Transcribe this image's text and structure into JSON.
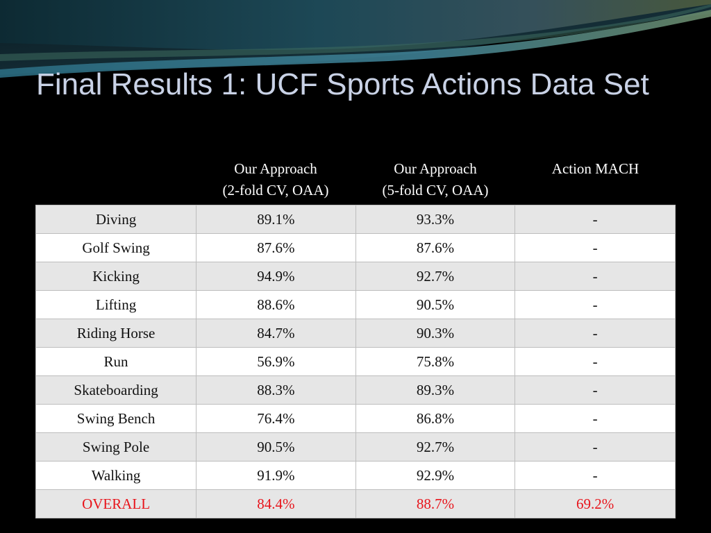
{
  "slide": {
    "title": "Final Results 1: UCF Sports Actions Data Set"
  },
  "table": {
    "headers": [
      "",
      "Our Approach\n(2-fold CV, OAA)",
      "Our Approach\n(5-fold CV, OAA)",
      "Action MACH"
    ],
    "rows": [
      [
        "Diving",
        "89.1%",
        "93.3%",
        "-"
      ],
      [
        "Golf Swing",
        "87.6%",
        "87.6%",
        "-"
      ],
      [
        "Kicking",
        "94.9%",
        "92.7%",
        "-"
      ],
      [
        "Lifting",
        "88.6%",
        "90.5%",
        "-"
      ],
      [
        "Riding Horse",
        "84.7%",
        "90.3%",
        "-"
      ],
      [
        "Run",
        "56.9%",
        "75.8%",
        "-"
      ],
      [
        "Skateboarding",
        "88.3%",
        "89.3%",
        "-"
      ],
      [
        "Swing Bench",
        "76.4%",
        "86.8%",
        "-"
      ],
      [
        "Swing Pole",
        "90.5%",
        "92.7%",
        "-"
      ],
      [
        "Walking",
        "91.9%",
        "92.9%",
        "-"
      ],
      [
        "OVERALL",
        "84.4%",
        "88.7%",
        "69.2%"
      ]
    ]
  },
  "colors": {
    "background": "#000000",
    "title": "#c9d2e6",
    "header_text": "#ffffff",
    "row_shaded": "#e6e6e6",
    "row_plain": "#ffffff",
    "overall_text": "#e8141b",
    "swoosh_dark": "#16303a",
    "swoosh_teal": "#2f6f86",
    "swoosh_olive": "#4c5a3a"
  }
}
